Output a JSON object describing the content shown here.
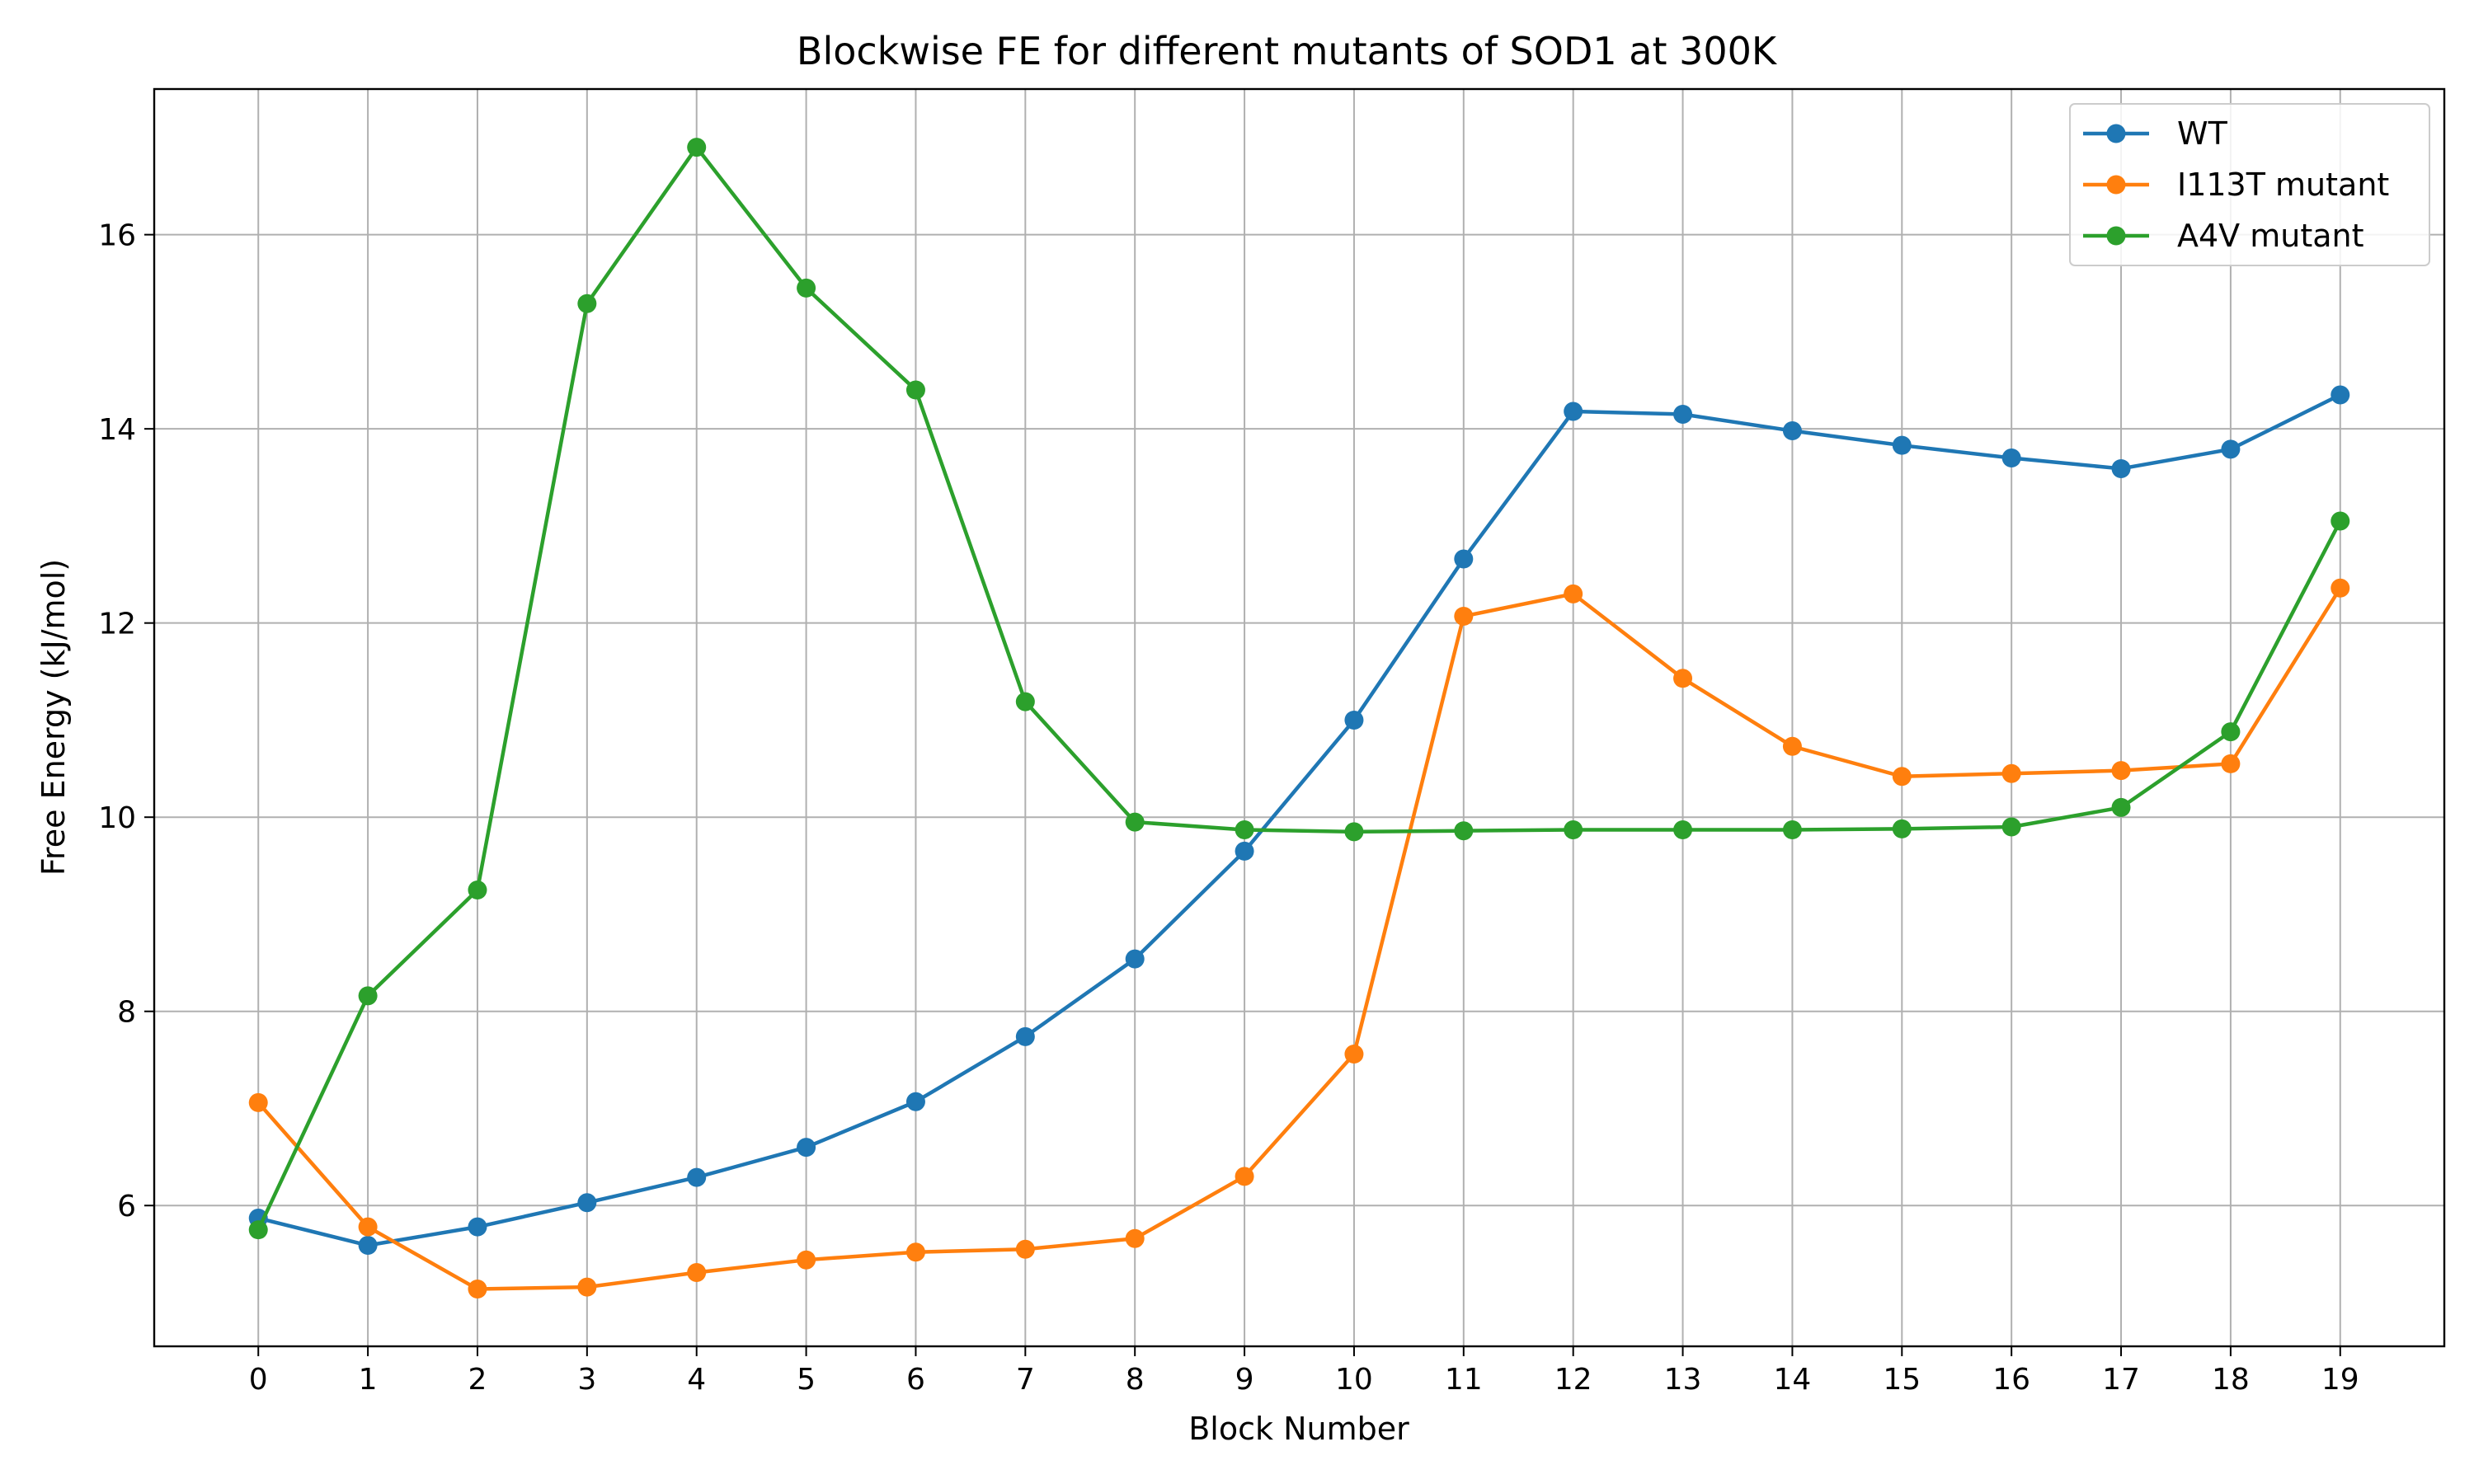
{
  "chart_data": {
    "type": "line",
    "title": "Blockwise FE for different mutants of SOD1 at 300K",
    "xlabel": "Block Number",
    "ylabel": "Free Energy (kJ/mol)",
    "x": [
      0,
      1,
      2,
      3,
      4,
      5,
      6,
      7,
      8,
      9,
      10,
      11,
      12,
      13,
      14,
      15,
      16,
      17,
      18,
      19
    ],
    "xlim": [
      -0.95,
      19.95
    ],
    "ylim": [
      4.55,
      17.5
    ],
    "yticks": [
      6,
      8,
      10,
      12,
      14,
      16
    ],
    "grid": true,
    "legend_position": "top-right",
    "series": [
      {
        "name": "WT",
        "color": "#1f77b4",
        "values": [
          5.87,
          5.59,
          5.78,
          6.03,
          6.29,
          6.6,
          7.07,
          7.74,
          8.54,
          9.65,
          11.0,
          12.66,
          14.18,
          14.15,
          13.98,
          13.83,
          13.7,
          13.59,
          13.79,
          14.35
        ]
      },
      {
        "name": "I113T mutant",
        "color": "#ff7f0e",
        "values": [
          7.06,
          5.78,
          5.14,
          5.16,
          5.31,
          5.44,
          5.52,
          5.55,
          5.66,
          6.3,
          7.56,
          12.07,
          12.3,
          11.43,
          10.73,
          10.42,
          10.45,
          10.48,
          10.55,
          12.36
        ]
      },
      {
        "name": "A4V mutant",
        "color": "#2ca02c",
        "values": [
          5.75,
          8.16,
          9.25,
          15.29,
          16.9,
          15.45,
          14.4,
          11.19,
          9.95,
          9.87,
          9.85,
          9.86,
          9.87,
          9.87,
          9.87,
          9.88,
          9.9,
          10.1,
          10.88,
          13.05
        ]
      }
    ]
  }
}
